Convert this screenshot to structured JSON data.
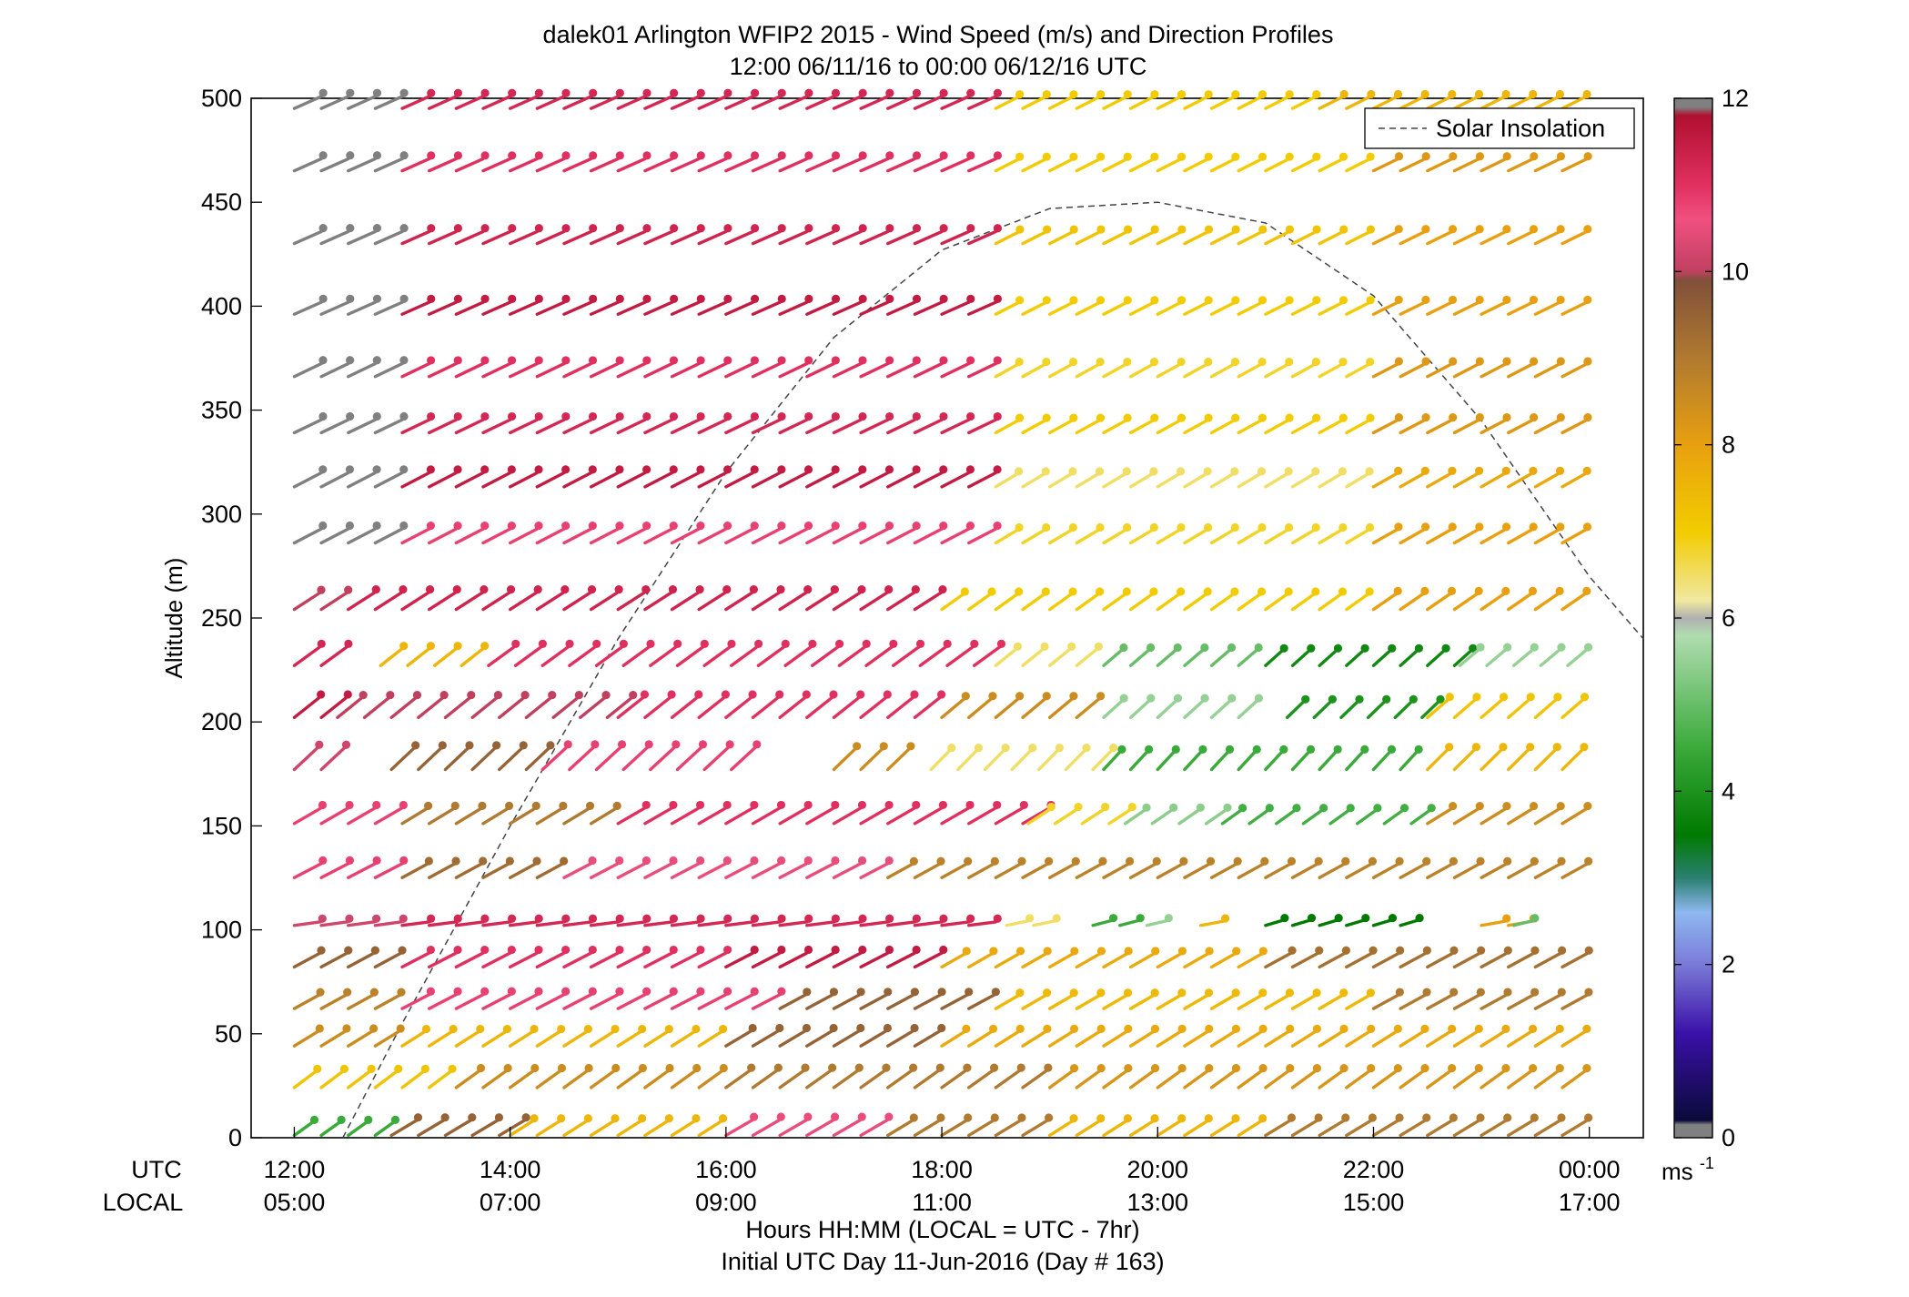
{
  "chart_data": {
    "type": "wind-barb-profile",
    "title": "dalek01 Arlington WFIP2 2015 - Wind Speed (m/s) and Direction Profiles",
    "subtitle": "12:00 06/11/16 to 00:00 06/12/16  UTC",
    "ylabel": "Altitude (m)",
    "xlabel": "Hours HH:MM  (LOCAL = UTC - 7hr)",
    "xlabel2": "Initial UTC Day 11-Jun-2016 (Day # 163)",
    "xrow_label_utc": "UTC",
    "xrow_label_local": "LOCAL",
    "x_range_hours_utc": [
      11.6,
      24.5
    ],
    "ylim": [
      0,
      500
    ],
    "y_ticks": [
      0,
      50,
      100,
      150,
      200,
      250,
      300,
      350,
      400,
      450,
      500
    ],
    "x_ticks": [
      {
        "hour": 12,
        "utc": "12:00",
        "local": "05:00"
      },
      {
        "hour": 14,
        "utc": "14:00",
        "local": "07:00"
      },
      {
        "hour": 16,
        "utc": "16:00",
        "local": "09:00"
      },
      {
        "hour": 18,
        "utc": "18:00",
        "local": "11:00"
      },
      {
        "hour": 20,
        "utc": "20:00",
        "local": "13:00"
      },
      {
        "hour": 22,
        "utc": "22:00",
        "local": "15:00"
      },
      {
        "hour": 24,
        "utc": "00:00",
        "local": "17:00"
      }
    ],
    "legend": {
      "entry": "Solar Insolation",
      "position": "top-right",
      "style": "dashed"
    },
    "colorbar": {
      "min": 0,
      "max": 12,
      "ticks": [
        0,
        2,
        4,
        6,
        8,
        10,
        12
      ],
      "unit": "ms",
      "unit_exp": "-1",
      "stops": [
        {
          "v": 0,
          "c": "#808080"
        },
        {
          "v": 0.15,
          "c": "#808080"
        },
        {
          "v": 0.2,
          "c": "#0a0a3a"
        },
        {
          "v": 1.2,
          "c": "#3a10a8"
        },
        {
          "v": 2.0,
          "c": "#7a7ad8"
        },
        {
          "v": 2.6,
          "c": "#8fb8f0"
        },
        {
          "v": 3.0,
          "c": "#2a8070"
        },
        {
          "v": 3.5,
          "c": "#007a00"
        },
        {
          "v": 4.5,
          "c": "#3aaa3a"
        },
        {
          "v": 5.8,
          "c": "#b0dcb0"
        },
        {
          "v": 6.0,
          "c": "#b0b0b0"
        },
        {
          "v": 6.2,
          "c": "#f0e8a0"
        },
        {
          "v": 7.0,
          "c": "#f2cc00"
        },
        {
          "v": 8.0,
          "c": "#e8a010"
        },
        {
          "v": 9.0,
          "c": "#b07a30"
        },
        {
          "v": 9.9,
          "c": "#80503a"
        },
        {
          "v": 10.0,
          "c": "#c04060"
        },
        {
          "v": 10.6,
          "c": "#f05080"
        },
        {
          "v": 11.0,
          "c": "#e03060"
        },
        {
          "v": 11.8,
          "c": "#b01030"
        },
        {
          "v": 11.9,
          "c": "#808080"
        },
        {
          "v": 12,
          "c": "#808080"
        }
      ]
    },
    "solar_insolation_curve": {
      "y_scale_altitude_at_peak": 450,
      "peak_hour_utc": 20.0,
      "zero_crossings_hours_utc": [
        12.45,
        24.5
      ],
      "sample_hours": [
        12.45,
        13,
        14,
        15,
        16,
        17,
        18,
        19,
        20,
        21,
        22,
        23,
        24,
        24.5
      ],
      "sample_altitudes": [
        0,
        55,
        150,
        240,
        320,
        385,
        427,
        447,
        450,
        440,
        405,
        345,
        270,
        240
      ]
    },
    "profile_levels_m": [
      2,
      25,
      45,
      63,
      83,
      103,
      126,
      152,
      178,
      203,
      228,
      255,
      287,
      314,
      340,
      367,
      397,
      431,
      466,
      496
    ],
    "time_step_minutes": 15,
    "speed_by_level_note": "Observed wind speeds (m/s) by level, from 12:00 to 00:00 UTC; null = missing",
    "profiles": [
      {
        "z": 2,
        "segments": [
          [
            12.0,
            12.9,
            4.5
          ],
          [
            12.9,
            14.0,
            9.5
          ],
          [
            14.0,
            16.0,
            7.5
          ],
          [
            16.0,
            17.5,
            10.5
          ],
          [
            17.5,
            19.0,
            9.0
          ],
          [
            19.0,
            21.0,
            7.5
          ],
          [
            21.0,
            24.0,
            9.0
          ]
        ],
        "dir_deg": 255
      },
      {
        "z": 25,
        "segments": [
          [
            12.0,
            13.5,
            7.2
          ],
          [
            13.5,
            16.0,
            8.5
          ],
          [
            16.0,
            19.0,
            9.0
          ],
          [
            19.0,
            24.0,
            8.3
          ]
        ],
        "dir_deg": 250
      },
      {
        "z": 45,
        "segments": [
          [
            12.0,
            13.0,
            8.5
          ],
          [
            13.0,
            16.0,
            7.5
          ],
          [
            16.0,
            18.0,
            9.5
          ],
          [
            18.0,
            24.0,
            7.8
          ]
        ],
        "dir_deg": 255
      },
      {
        "z": 63,
        "segments": [
          [
            12.0,
            13.0,
            8.8
          ],
          [
            13.0,
            16.5,
            10.8
          ],
          [
            16.5,
            18.5,
            9.5
          ],
          [
            18.5,
            22.0,
            7.4
          ],
          [
            22.0,
            24.0,
            9.0
          ]
        ],
        "dir_deg": 258
      },
      {
        "z": 83,
        "segments": [
          [
            12.0,
            13.0,
            9.5
          ],
          [
            13.0,
            16.0,
            11.0
          ],
          [
            16.0,
            18.0,
            11.5
          ],
          [
            18.0,
            21.0,
            7.8
          ],
          [
            21.0,
            24.0,
            9.2
          ]
        ],
        "dir_deg": 258
      },
      {
        "z": 103,
        "segments": [
          [
            12.0,
            13.0,
            10.2
          ],
          [
            13.0,
            18.4,
            11.2
          ],
          [
            18.6,
            18.9,
            6.5
          ],
          [
            19.4,
            19.7,
            4.5
          ],
          [
            19.9,
            20.1,
            5.5
          ],
          [
            20.4,
            20.6,
            7.5
          ],
          [
            21.0,
            21.3,
            3.5
          ],
          [
            21.5,
            22.5,
            3.5
          ],
          [
            23.0,
            23.3,
            8.0
          ],
          [
            23.3,
            23.5,
            5.0
          ]
        ],
        "dir_deg": 280
      },
      {
        "z": 126,
        "segments": [
          [
            12.0,
            13.0,
            10.8
          ],
          [
            13.0,
            14.5,
            9.3
          ],
          [
            14.5,
            17.5,
            10.5
          ],
          [
            17.5,
            24.0,
            8.8
          ]
        ],
        "dir_deg": 258
      },
      {
        "z": 152,
        "segments": [
          [
            12.0,
            13.0,
            10.8
          ],
          [
            13.0,
            15.0,
            9.0
          ],
          [
            15.0,
            18.8,
            11.0
          ],
          [
            18.8,
            19.7,
            6.8
          ],
          [
            19.7,
            20.6,
            5.4
          ],
          [
            20.6,
            22.5,
            4.6
          ],
          [
            22.5,
            24.0,
            8.5
          ]
        ],
        "dir_deg": 255
      },
      {
        "z": 178,
        "segments": [
          [
            12.0,
            12.4,
            10.2
          ],
          [
            12.9,
            14.3,
            9.5
          ],
          [
            14.3,
            16.3,
            10.8
          ],
          [
            17.0,
            17.6,
            8.5
          ],
          [
            17.9,
            19.5,
            6.5
          ],
          [
            19.5,
            22.5,
            4.5
          ],
          [
            22.5,
            24.0,
            7.5
          ]
        ],
        "dir_deg": 240
      },
      {
        "z": 203,
        "segments": [
          [
            12.0,
            12.4,
            11.5
          ],
          [
            12.4,
            15.0,
            10.0
          ],
          [
            15.0,
            18.0,
            11.0
          ],
          [
            18.0,
            19.5,
            8.5
          ],
          [
            19.5,
            21.0,
            5.5
          ],
          [
            21.2,
            22.5,
            4.0
          ],
          [
            22.5,
            24.0,
            7.2
          ]
        ],
        "dir_deg": 245
      },
      {
        "z": 228,
        "segments": [
          [
            12.0,
            12.4,
            11.2
          ],
          [
            12.8,
            13.8,
            7.5
          ],
          [
            13.8,
            18.5,
            11.0
          ],
          [
            18.5,
            19.5,
            6.5
          ],
          [
            19.5,
            21.0,
            5.0
          ],
          [
            21.0,
            22.8,
            3.8
          ],
          [
            22.8,
            24.0,
            5.5
          ]
        ],
        "dir_deg": 248
      },
      {
        "z": 255,
        "segments": [
          [
            12.0,
            12.5,
            10.0
          ],
          [
            12.5,
            18.0,
            11.3
          ],
          [
            18.0,
            22.0,
            7.0
          ],
          [
            22.0,
            24.0,
            8.0
          ]
        ],
        "dir_deg": 252
      },
      {
        "z": 287,
        "segments": [
          [
            12.0,
            13.0,
            11.9
          ],
          [
            13.0,
            18.5,
            10.8
          ],
          [
            18.5,
            22.0,
            6.8
          ],
          [
            22.0,
            24.0,
            8.0
          ]
        ],
        "dir_deg": 258
      },
      {
        "z": 314,
        "segments": [
          [
            12.0,
            13.0,
            11.9
          ],
          [
            13.0,
            18.5,
            11.5
          ],
          [
            18.5,
            22.0,
            6.5
          ],
          [
            22.0,
            24.0,
            7.8
          ]
        ],
        "dir_deg": 258
      },
      {
        "z": 340,
        "segments": [
          [
            12.0,
            13.0,
            11.9
          ],
          [
            13.0,
            18.5,
            11.2
          ],
          [
            18.5,
            22.0,
            7.0
          ],
          [
            22.0,
            24.0,
            8.2
          ]
        ],
        "dir_deg": 260
      },
      {
        "z": 367,
        "segments": [
          [
            12.0,
            13.0,
            11.9
          ],
          [
            13.0,
            18.5,
            11.0
          ],
          [
            18.5,
            22.0,
            6.8
          ],
          [
            22.0,
            24.0,
            8.2
          ]
        ],
        "dir_deg": 260
      },
      {
        "z": 397,
        "segments": [
          [
            12.0,
            13.0,
            11.9
          ],
          [
            13.0,
            18.5,
            11.5
          ],
          [
            18.5,
            22.0,
            7.0
          ],
          [
            22.0,
            24.0,
            8.0
          ]
        ],
        "dir_deg": 262
      },
      {
        "z": 431,
        "segments": [
          [
            12.0,
            13.0,
            11.9
          ],
          [
            13.0,
            18.5,
            11.3
          ],
          [
            18.5,
            22.0,
            7.2
          ],
          [
            22.0,
            24.0,
            8.0
          ]
        ],
        "dir_deg": 262
      },
      {
        "z": 466,
        "segments": [
          [
            12.0,
            13.0,
            11.9
          ],
          [
            13.0,
            18.5,
            11.0
          ],
          [
            18.5,
            22.0,
            7.0
          ],
          [
            22.0,
            24.0,
            8.2
          ]
        ],
        "dir_deg": 262
      },
      {
        "z": 496,
        "segments": [
          [
            12.0,
            13.0,
            11.9
          ],
          [
            13.0,
            18.5,
            11.2
          ],
          [
            18.5,
            21.5,
            7.0
          ],
          [
            21.5,
            24.0,
            7.5
          ]
        ],
        "dir_deg": 262
      }
    ]
  }
}
